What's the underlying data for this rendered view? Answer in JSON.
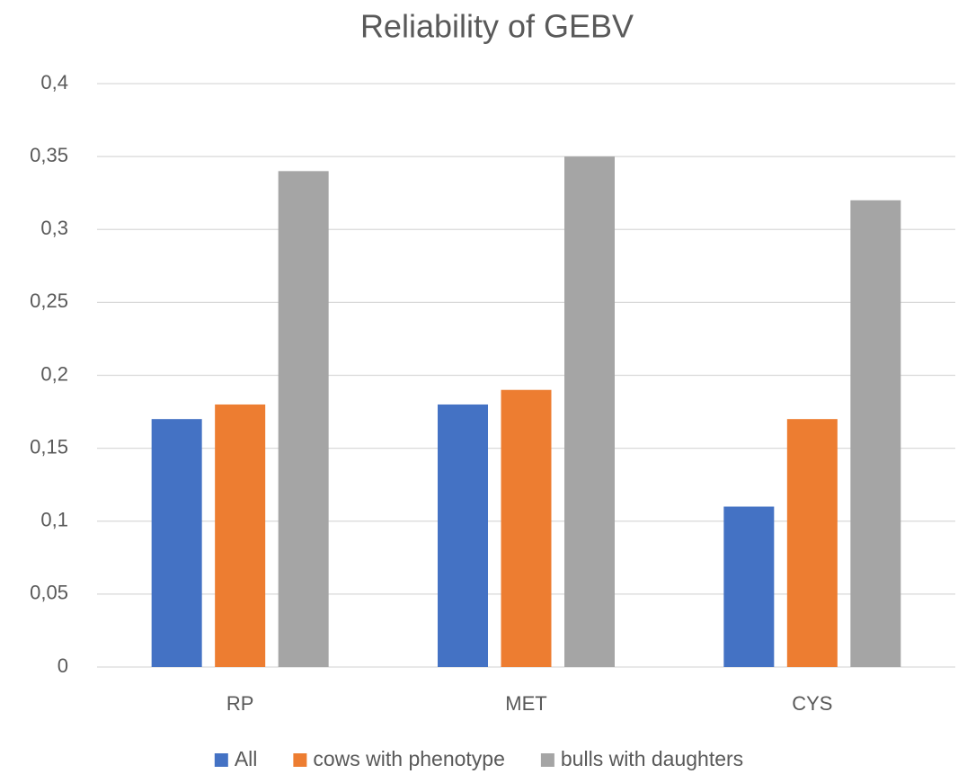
{
  "chart_data": {
    "type": "bar",
    "title": "Reliability of GEBV",
    "categories": [
      "RP",
      "MET",
      "CYS"
    ],
    "series": [
      {
        "name": "All",
        "color": "#4472c4",
        "values": [
          0.17,
          0.18,
          0.11
        ]
      },
      {
        "name": "cows with phenotype",
        "color": "#ed7d31",
        "values": [
          0.18,
          0.19,
          0.17
        ]
      },
      {
        "name": "bulls with daughters",
        "color": "#a5a5a5",
        "values": [
          0.34,
          0.35,
          0.32
        ]
      }
    ],
    "ylim": [
      0,
      0.4
    ],
    "yticks": [
      0,
      {
        "value": 0.05,
        "label": "0,05"
      },
      {
        "value": 0.1,
        "label": "0,1"
      },
      {
        "value": 0.15,
        "label": "0,15"
      },
      {
        "value": 0.2,
        "label": "0,2"
      },
      {
        "value": 0.25,
        "label": "0,25"
      },
      {
        "value": 0.3,
        "label": "0,3"
      },
      {
        "value": 0.35,
        "label": "0,35"
      },
      {
        "value": 0.4,
        "label": "0,4"
      }
    ],
    "grid": true,
    "legend": "bottom"
  }
}
